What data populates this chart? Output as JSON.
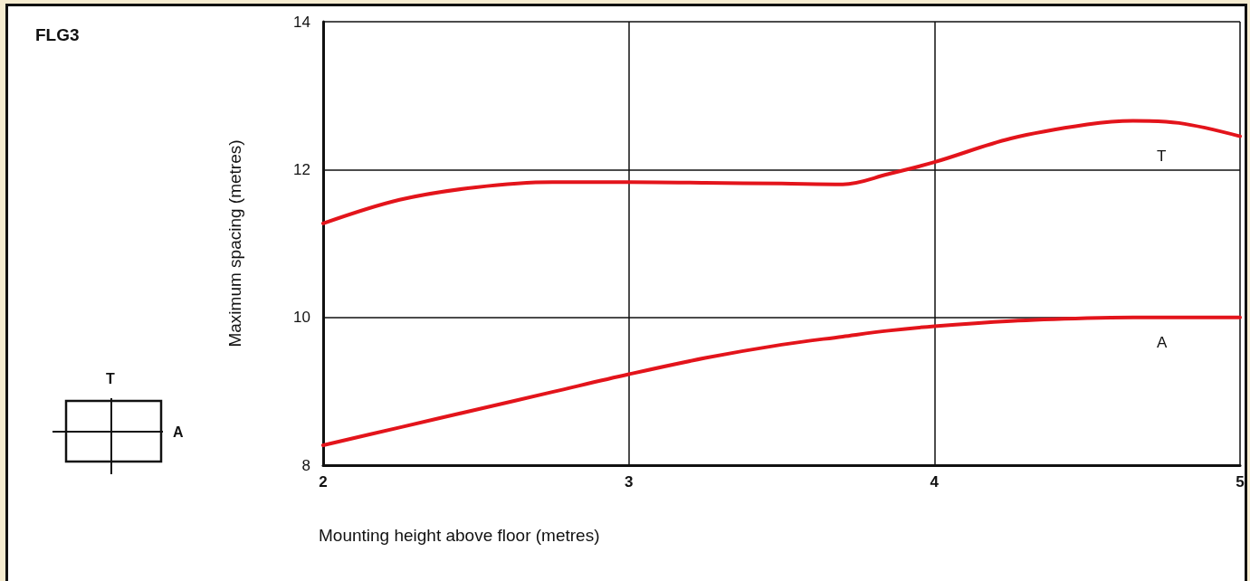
{
  "chart_data": {
    "type": "line",
    "title": "FLG3",
    "xlabel": "Mounting height above floor (metres)",
    "ylabel": "Maximum spacing (metres)",
    "annotations": [
      "T",
      "A"
    ],
    "x": [
      2,
      2.25,
      2.5,
      2.75,
      3,
      3.25,
      3.5,
      3.7,
      3.85,
      4,
      4.25,
      4.5,
      4.65,
      4.8,
      5
    ],
    "series": [
      {
        "name": "T",
        "color": "#e3141b",
        "values": [
          11.27,
          11.59,
          11.76,
          11.83,
          11.83,
          11.82,
          11.81,
          11.8,
          11.94,
          12.1,
          12.42,
          12.61,
          12.66,
          12.63,
          12.45
        ]
      },
      {
        "name": "A",
        "color": "#e3141b",
        "values": [
          8.27,
          8.51,
          8.75,
          8.99,
          9.23,
          9.45,
          9.63,
          9.74,
          9.82,
          9.88,
          9.95,
          9.99,
          10.0,
          10.0,
          10.0
        ]
      }
    ],
    "xlim": [
      2,
      5
    ],
    "xticks": [
      2,
      3,
      4,
      5
    ],
    "ylim": [
      8,
      14
    ],
    "yticks": [
      8,
      10,
      12,
      14
    ],
    "grid": true,
    "legend": false,
    "marker": "none",
    "line_style": "solid"
  }
}
